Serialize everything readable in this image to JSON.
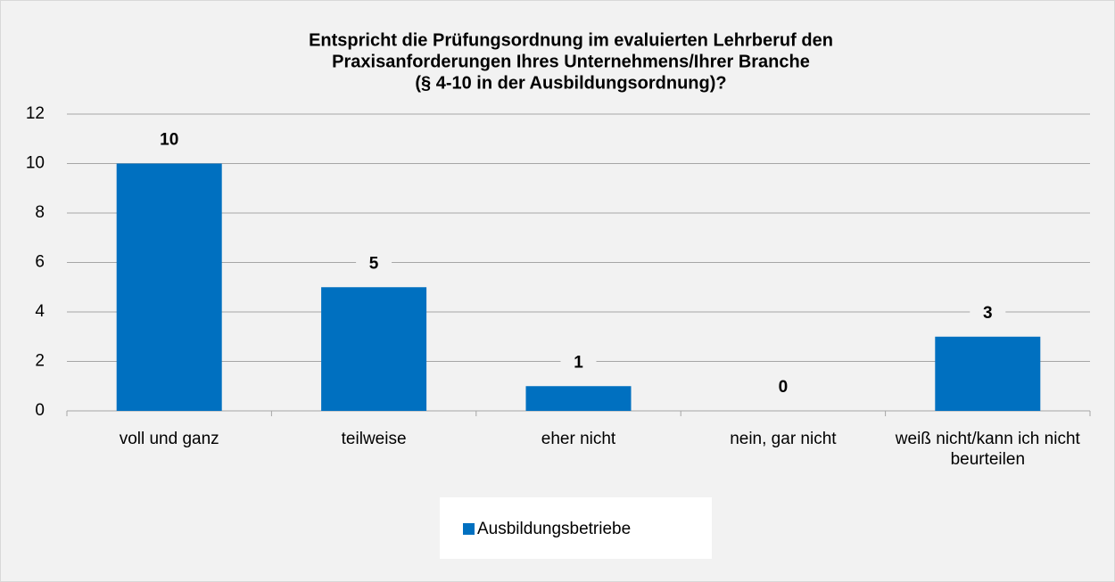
{
  "chart_data": {
    "type": "bar",
    "title": [
      "Entspricht die Prüfungsordnung im evaluierten Lehrberuf den",
      "Praxisanforderungen Ihres Unternehmens/Ihrer Branche",
      "(§ 4-10 in der Ausbildungsordnung)?"
    ],
    "categories": [
      "voll und ganz",
      "teilweise",
      "eher nicht",
      "nein, gar nicht",
      "weiß nicht/kann ich nicht beurteilen"
    ],
    "series": [
      {
        "name": "Ausbildungsbetriebe",
        "color": "#0070c0",
        "values": [
          10,
          5,
          1,
          0,
          3
        ]
      }
    ],
    "ylim": [
      0,
      12
    ],
    "yticks": [
      0,
      2,
      4,
      6,
      8,
      10,
      12
    ],
    "grid": true,
    "legend": "bottom"
  }
}
